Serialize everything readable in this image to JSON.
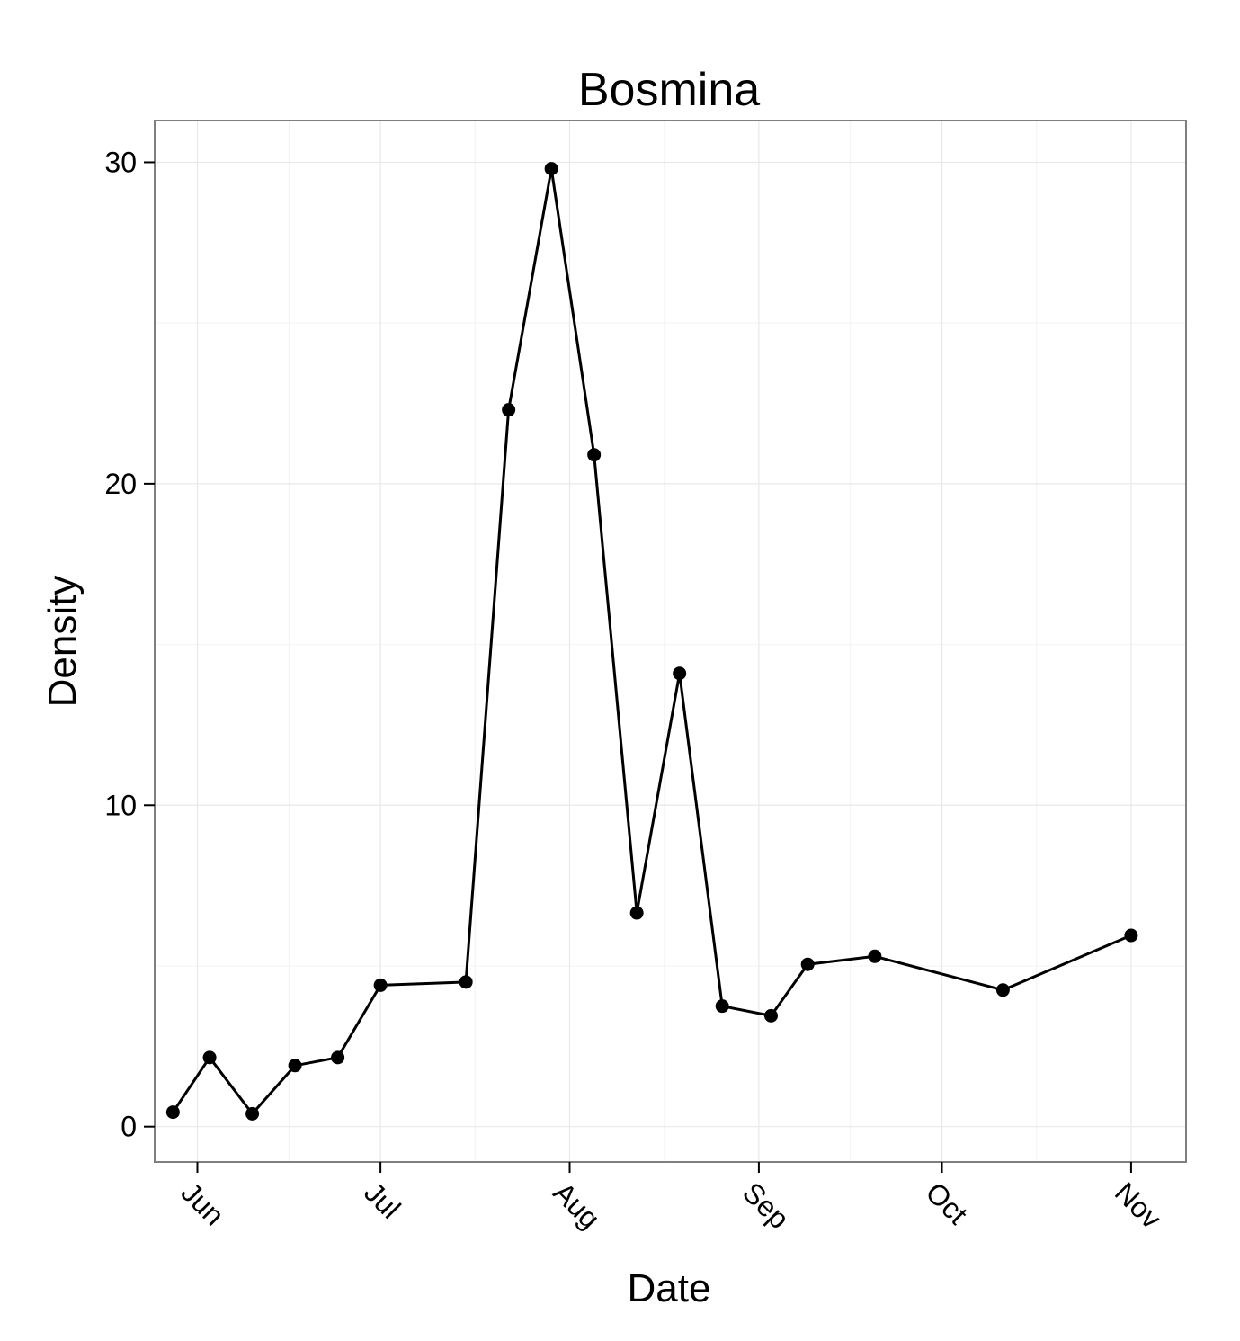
{
  "chart_data": {
    "type": "line",
    "title": "Bosmina",
    "xlabel": "Date",
    "ylabel": "Density",
    "x_ticks": [
      {
        "label": "Jun",
        "date": "2013-06-01"
      },
      {
        "label": "Jul",
        "date": "2013-07-01"
      },
      {
        "label": "Aug",
        "date": "2013-08-01"
      },
      {
        "label": "Sep",
        "date": "2013-09-01"
      },
      {
        "label": "Oct",
        "date": "2013-10-01"
      },
      {
        "label": "Nov",
        "date": "2013-11-01"
      }
    ],
    "y_ticks": [
      0,
      10,
      20,
      30
    ],
    "xlim": [
      "2013-05-25",
      "2013-11-10"
    ],
    "ylim": [
      -1.1,
      31.3
    ],
    "grid": true,
    "series": [
      {
        "points": [
          {
            "x": "2013-05-28",
            "y": 0.45
          },
          {
            "x": "2013-06-03",
            "y": 2.15
          },
          {
            "x": "2013-06-10",
            "y": 0.4
          },
          {
            "x": "2013-06-17",
            "y": 1.9
          },
          {
            "x": "2013-06-24",
            "y": 2.15
          },
          {
            "x": "2013-07-01",
            "y": 4.4
          },
          {
            "x": "2013-07-15",
            "y": 4.5
          },
          {
            "x": "2013-07-22",
            "y": 22.3
          },
          {
            "x": "2013-07-29",
            "y": 29.8
          },
          {
            "x": "2013-08-05",
            "y": 20.9
          },
          {
            "x": "2013-08-12",
            "y": 6.65
          },
          {
            "x": "2013-08-19",
            "y": 14.1
          },
          {
            "x": "2013-08-26",
            "y": 3.75
          },
          {
            "x": "2013-09-03",
            "y": 3.45
          },
          {
            "x": "2013-09-09",
            "y": 5.05
          },
          {
            "x": "2013-09-20",
            "y": 5.3
          },
          {
            "x": "2013-10-11",
            "y": 4.25
          },
          {
            "x": "2013-11-01",
            "y": 5.95
          }
        ]
      }
    ],
    "colors": {
      "line": "#000000",
      "points": "#000000",
      "panel_border": "#7f7f7f",
      "grid": "#ebebeb"
    }
  }
}
